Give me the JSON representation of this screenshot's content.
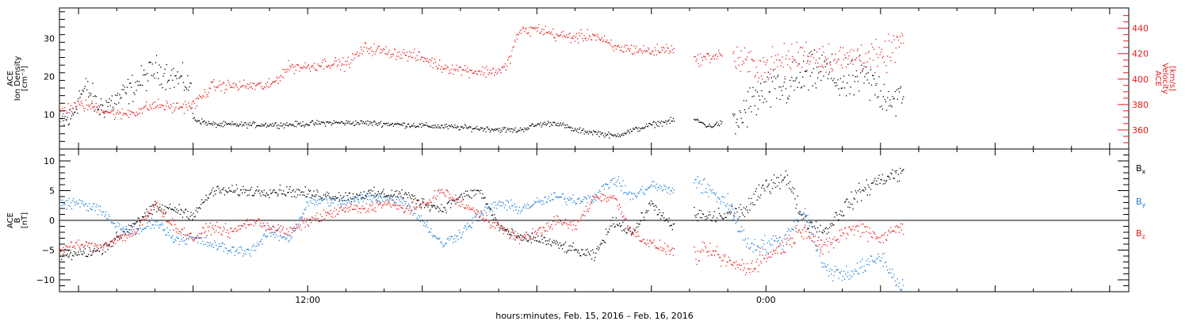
{
  "colors": {
    "black": "#000000",
    "red": "#e8191b",
    "blue": "#1f7fd8"
  },
  "footer_label": "hours:minutes, Feb. 15, 2016 – Feb. 16, 2016",
  "chart_data": [
    {
      "type": "scatter",
      "panel": "density-velocity",
      "time_range_hours": [
        5.5,
        33.5
      ],
      "xtick_labels": [
        {
          "hour": 12,
          "label": "12:00"
        },
        {
          "hour": 24,
          "label": "0:00"
        }
      ],
      "left_axis": {
        "label_lines": [
          "ACE",
          "Ion Density",
          "[cm⁻³]"
        ],
        "ylim": [
          1,
          38
        ],
        "ticks": [
          10,
          20,
          30
        ]
      },
      "right_axis": {
        "label_lines": [
          "ACE",
          "Velocity",
          "[km/s]"
        ],
        "ylim": [
          345,
          456
        ],
        "ticks": [
          360,
          380,
          400,
          420,
          440
        ],
        "color": "#e8191b"
      },
      "gaps_hours": [
        [
          21.6,
          22.1
        ],
        [
          22.85,
          23.1
        ]
      ],
      "data_end_hour": 27.6,
      "series": [
        {
          "color": "#000000",
          "axis": "left",
          "knots": [
            [
              5.5,
              8
            ],
            [
              5.8,
              9
            ],
            [
              6.0,
              15
            ],
            [
              6.2,
              17
            ],
            [
              6.5,
              12
            ],
            [
              7.0,
              14
            ],
            [
              7.5,
              18
            ],
            [
              8.0,
              22
            ],
            [
              8.5,
              20
            ],
            [
              8.9,
              18
            ],
            [
              9.0,
              9
            ],
            [
              9.5,
              7.5
            ],
            [
              10.5,
              7.5
            ],
            [
              11.5,
              7.5
            ],
            [
              12.5,
              8
            ],
            [
              13.5,
              8
            ],
            [
              14.5,
              7.5
            ],
            [
              15.5,
              7
            ],
            [
              16.5,
              6.5
            ],
            [
              17.5,
              6
            ],
            [
              18.0,
              7.5
            ],
            [
              18.5,
              8
            ],
            [
              19.0,
              6
            ],
            [
              19.5,
              5.5
            ],
            [
              20.0,
              4.5
            ],
            [
              20.5,
              6
            ],
            [
              21.0,
              7.5
            ],
            [
              21.5,
              8.5
            ],
            [
              22.1,
              9
            ],
            [
              22.5,
              7
            ],
            [
              22.85,
              8
            ],
            [
              23.1,
              6
            ],
            [
              23.5,
              12
            ],
            [
              24.0,
              16
            ],
            [
              24.5,
              17
            ],
            [
              25.0,
              20
            ],
            [
              25.5,
              22
            ],
            [
              26.0,
              18
            ],
            [
              26.5,
              20
            ],
            [
              27.0,
              16
            ],
            [
              27.5,
              14
            ]
          ]
        },
        {
          "color": "#e8191b",
          "axis": "right",
          "knots": [
            [
              5.5,
              375
            ],
            [
              6.0,
              380
            ],
            [
              6.5,
              378
            ],
            [
              7.0,
              372
            ],
            [
              7.5,
              375
            ],
            [
              8.0,
              380
            ],
            [
              8.5,
              378
            ],
            [
              9.0,
              380
            ],
            [
              9.5,
              395
            ],
            [
              10.5,
              395
            ],
            [
              11.0,
              395
            ],
            [
              11.5,
              410
            ],
            [
              12.0,
              410
            ],
            [
              12.5,
              413
            ],
            [
              13.0,
              412
            ],
            [
              13.5,
              425
            ],
            [
              14.0,
              422
            ],
            [
              14.5,
              420
            ],
            [
              15.0,
              417
            ],
            [
              15.5,
              410
            ],
            [
              16.0,
              408
            ],
            [
              16.5,
              406
            ],
            [
              17.0,
              407
            ],
            [
              17.2,
              410
            ],
            [
              17.5,
              437
            ],
            [
              18.0,
              440
            ],
            [
              18.5,
              435
            ],
            [
              19.0,
              433
            ],
            [
              19.5,
              435
            ],
            [
              20.0,
              425
            ],
            [
              20.5,
              424
            ],
            [
              21.0,
              422
            ],
            [
              21.5,
              425
            ],
            [
              22.1,
              415
            ],
            [
              22.85,
              420
            ],
            [
              23.1,
              418
            ],
            [
              23.5,
              412
            ],
            [
              24.0,
              410
            ],
            [
              24.5,
              415
            ],
            [
              25.0,
              420
            ],
            [
              25.5,
              418
            ],
            [
              26.0,
              415
            ],
            [
              26.5,
              420
            ],
            [
              27.0,
              415
            ],
            [
              27.5,
              430
            ]
          ]
        }
      ]
    },
    {
      "type": "scatter",
      "panel": "magnetic-field",
      "time_range_hours": [
        5.5,
        33.5
      ],
      "xtick_labels": [
        {
          "hour": 12,
          "label": "12:00"
        },
        {
          "hour": 24,
          "label": "0:00"
        }
      ],
      "left_axis": {
        "label_lines": [
          "ACE",
          "B",
          "[nT]"
        ],
        "ylim": [
          -12,
          12
        ],
        "ticks": [
          -10,
          -5,
          0,
          5,
          10
        ]
      },
      "zero_line": true,
      "gaps_hours": [
        [
          21.6,
          22.1
        ]
      ],
      "data_end_hour": 27.6,
      "series": [
        {
          "name": "Bx",
          "color": "#000000",
          "knots": [
            [
              5.5,
              -6
            ],
            [
              6.0,
              -5.5
            ],
            [
              6.5,
              -5
            ],
            [
              7.0,
              -3
            ],
            [
              7.5,
              0
            ],
            [
              8.0,
              2
            ],
            [
              8.5,
              2
            ],
            [
              9.0,
              1
            ],
            [
              9.5,
              5
            ],
            [
              10.5,
              5
            ],
            [
              11.5,
              5
            ],
            [
              12.0,
              4.5
            ],
            [
              13.0,
              4
            ],
            [
              13.5,
              4.5
            ],
            [
              14.5,
              4.5
            ],
            [
              15.0,
              3
            ],
            [
              15.5,
              2
            ],
            [
              16.0,
              4
            ],
            [
              16.5,
              5
            ],
            [
              17.0,
              -1
            ],
            [
              17.5,
              -3
            ],
            [
              18.0,
              -3
            ],
            [
              18.5,
              -4
            ],
            [
              19.0,
              -5
            ],
            [
              19.5,
              -6
            ],
            [
              20.0,
              0
            ],
            [
              20.5,
              -2
            ],
            [
              21.0,
              3
            ],
            [
              21.5,
              -1
            ],
            [
              22.1,
              1
            ],
            [
              22.5,
              0.5
            ],
            [
              23.0,
              1
            ],
            [
              23.5,
              2
            ],
            [
              24.0,
              6
            ],
            [
              24.5,
              7.5
            ],
            [
              25.0,
              0
            ],
            [
              25.5,
              -2
            ],
            [
              26.0,
              2
            ],
            [
              26.5,
              5
            ],
            [
              27.0,
              7
            ],
            [
              27.5,
              8
            ]
          ]
        },
        {
          "name": "By",
          "color": "#1f7fd8",
          "knots": [
            [
              5.5,
              3
            ],
            [
              6.0,
              3
            ],
            [
              6.5,
              2
            ],
            [
              7.0,
              -1
            ],
            [
              7.5,
              -2
            ],
            [
              8.0,
              0
            ],
            [
              8.5,
              -3
            ],
            [
              9.0,
              -3
            ],
            [
              9.5,
              -4
            ],
            [
              10.0,
              -5
            ],
            [
              10.5,
              -5
            ],
            [
              11.0,
              -2
            ],
            [
              11.5,
              -3
            ],
            [
              12.0,
              3
            ],
            [
              12.5,
              3.5
            ],
            [
              13.0,
              3
            ],
            [
              13.5,
              4
            ],
            [
              14.5,
              3.5
            ],
            [
              15.0,
              0
            ],
            [
              15.5,
              -4
            ],
            [
              16.0,
              -2
            ],
            [
              16.5,
              1
            ],
            [
              17.0,
              3
            ],
            [
              17.5,
              2
            ],
            [
              18.0,
              3
            ],
            [
              18.5,
              4
            ],
            [
              19.0,
              3.5
            ],
            [
              19.5,
              4
            ],
            [
              20.0,
              7
            ],
            [
              20.5,
              4
            ],
            [
              21.0,
              6
            ],
            [
              21.5,
              5
            ],
            [
              22.1,
              7
            ],
            [
              22.5,
              5
            ],
            [
              23.0,
              3
            ],
            [
              23.5,
              -4
            ],
            [
              24.0,
              -4
            ],
            [
              24.5,
              -3
            ],
            [
              25.0,
              2
            ],
            [
              25.5,
              -8
            ],
            [
              26.0,
              -9
            ],
            [
              26.5,
              -8
            ],
            [
              27.0,
              -6
            ],
            [
              27.5,
              -11
            ]
          ]
        },
        {
          "name": "Bz",
          "color": "#e8191b",
          "knots": [
            [
              5.5,
              -5
            ],
            [
              6.0,
              -4
            ],
            [
              6.5,
              -4.5
            ],
            [
              7.0,
              -3
            ],
            [
              7.5,
              -2
            ],
            [
              8.0,
              3
            ],
            [
              8.5,
              -1
            ],
            [
              9.0,
              -3
            ],
            [
              9.5,
              -1
            ],
            [
              10.0,
              -2
            ],
            [
              10.5,
              0
            ],
            [
              11.0,
              -1
            ],
            [
              11.5,
              -2
            ],
            [
              12.0,
              0
            ],
            [
              12.5,
              1
            ],
            [
              13.0,
              2
            ],
            [
              13.5,
              2
            ],
            [
              14.0,
              3
            ],
            [
              14.5,
              2
            ],
            [
              15.0,
              2.5
            ],
            [
              15.5,
              5
            ],
            [
              16.0,
              3
            ],
            [
              16.5,
              1
            ],
            [
              17.0,
              -1
            ],
            [
              17.5,
              -3
            ],
            [
              18.0,
              -2
            ],
            [
              18.5,
              0
            ],
            [
              19.0,
              -1
            ],
            [
              19.5,
              4
            ],
            [
              20.0,
              4
            ],
            [
              20.5,
              -2
            ],
            [
              21.0,
              -4
            ],
            [
              21.5,
              -5
            ],
            [
              22.1,
              -6
            ],
            [
              22.5,
              -5
            ],
            [
              23.0,
              -7
            ],
            [
              23.5,
              -8
            ],
            [
              24.0,
              -6
            ],
            [
              24.5,
              -4
            ],
            [
              25.0,
              -1
            ],
            [
              25.5,
              -5
            ],
            [
              26.0,
              -2
            ],
            [
              26.5,
              -1
            ],
            [
              27.0,
              -3
            ],
            [
              27.5,
              -1
            ]
          ]
        }
      ],
      "legend": [
        {
          "base": "B",
          "sub": "x",
          "color": "#000000"
        },
        {
          "base": "B",
          "sub": "y",
          "color": "#1f7fd8"
        },
        {
          "base": "B",
          "sub": "z",
          "color": "#e8191b"
        }
      ]
    }
  ]
}
